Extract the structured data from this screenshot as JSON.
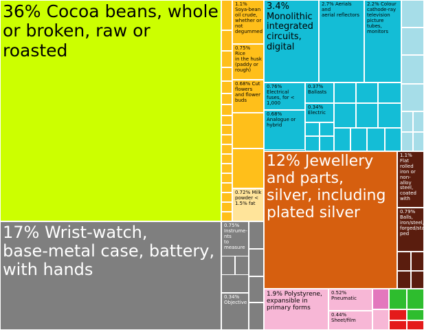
{
  "chart_data": {
    "type": "treemap",
    "colors": {
      "agri": "#ccff00",
      "agri_light": "#ffbf1a",
      "agri_pale": "#ffe49a",
      "electronics": "#14bdd6",
      "electronics_light": "#a6dde8",
      "metals": "#d65f0f",
      "metals_dark": "#5a1d0e",
      "instruments": "#7f7f7f",
      "chemicals": "#f7b7d6",
      "chemicals_pink": "#e377bd",
      "machinery_green": "#2ebd2e",
      "red": "#e41a1a"
    },
    "labels": {
      "cocoa": "36% Cocoa beans, whole\nor broken, raw or roasted",
      "watch": "17% Wrist-watch,\nbase-metal case, battery,\nwith hands",
      "jewellery": "12% Jewellery\nand parts,\nsilver, including\nplated silver",
      "ic": "3.4%\nMonolithic\nintegrated\ncircuits,\ndigital",
      "aerials": "2.7% Aerials and\naerial reflectors",
      "crt": "2.2% Colour\ncathode-ray\ntelevision\npicture tubes,\nmonitors",
      "polystyrene": "1.9% Polystyrene,\nexpansible in\nprimary forms",
      "soya": "1.1%\nSoya-bean\noil crude,\nwhether or\nnot\ndegummed",
      "flat_iron": "1.1%\nFlat\nrolled\niron or\nnon-alloy\nsteel,\ncoated\nwith",
      "balls": "0.79%\nBalls,\niron/steel,\nforged/stam-\nped",
      "fuses": "0.76% Electrical\nfuses, for <\n1,000",
      "rice": "0.75% Rice\nin the husk\n(paddy or\nrough)",
      "instruments": "0.75%\nInstrume-\nnts\nto\nmeasure",
      "milk": "0.72% Milk\npowder <\n1.5% fat",
      "flowers": "0.68% Cut\nflowers\nand flower\nbuds",
      "analogue": "0.68%\nAnalogue or\nhybrid",
      "pneumatic": "0.52%\nPneumatic",
      "sheet_film": "0.44%\nSheet/film",
      "ballasts": "0.37%\nBallasts",
      "electric": "0.34%\nElectric",
      "objective": "0.34%\nObjective"
    },
    "items": [
      {
        "label": "36% Cocoa beans, whole or broken, raw or roasted",
        "value": 36
      },
      {
        "label": "17% Wrist-watch, base-metal case, battery, with hands",
        "value": 17
      },
      {
        "label": "12% Jewellery and parts, silver, including plated silver",
        "value": 12
      },
      {
        "label": "3.4% Monolithic integrated circuits, digital",
        "value": 3.4
      },
      {
        "label": "2.7% Aerials and aerial reflectors",
        "value": 2.7
      },
      {
        "label": "2.2% Colour cathode-ray television picture tubes, monitors",
        "value": 2.2
      },
      {
        "label": "1.9% Polystyrene, expansible in primary forms",
        "value": 1.9
      },
      {
        "label": "1.1% Soya-bean oil crude, whether or not degummed",
        "value": 1.1
      },
      {
        "label": "1.1% Flat rolled iron or non-alloy steel, coated with",
        "value": 1.1
      },
      {
        "label": "0.79% Balls, iron/steel, forged/stamped",
        "value": 0.79
      },
      {
        "label": "0.76% Electrical fuses, for < 1,000",
        "value": 0.76
      },
      {
        "label": "0.75% Rice in the husk (paddy or rough)",
        "value": 0.75
      },
      {
        "label": "0.75% Instruments to measure",
        "value": 0.75
      },
      {
        "label": "0.72% Milk powder < 1.5% fat",
        "value": 0.72
      },
      {
        "label": "0.68% Cut flowers and flower buds",
        "value": 0.68
      },
      {
        "label": "0.68% Analogue or hybrid",
        "value": 0.68
      },
      {
        "label": "0.52% Pneumatic",
        "value": 0.52
      },
      {
        "label": "0.44% Sheet/film",
        "value": 0.44
      },
      {
        "label": "0.37% Ballasts",
        "value": 0.37
      },
      {
        "label": "0.34% Electric",
        "value": 0.34
      },
      {
        "label": "0.34% Objective",
        "value": 0.34
      }
    ]
  }
}
